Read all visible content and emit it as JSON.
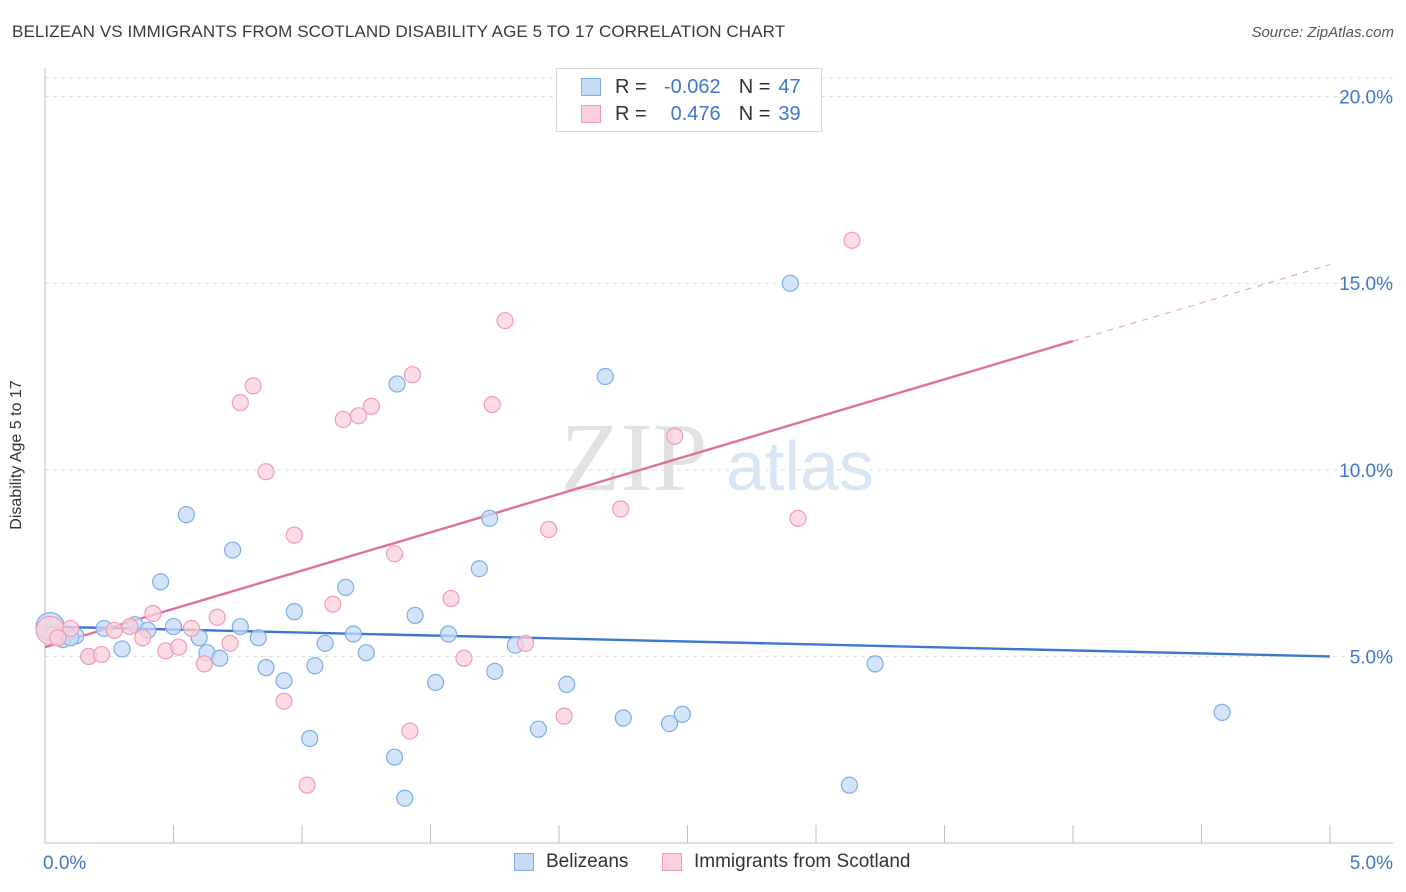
{
  "title": "BELIZEAN VS IMMIGRANTS FROM SCOTLAND DISABILITY AGE 5 TO 17 CORRELATION CHART",
  "source": "Source: ZipAtlas.com",
  "watermark": {
    "zip": "ZIP",
    "atlas": "atlas"
  },
  "legend_top": {
    "rows": [
      {
        "r_label": "R =",
        "r_value": "-0.062",
        "n_label": "N =",
        "n_value": "47",
        "color": "#7eaee8",
        "fill": "#c6dbf6"
      },
      {
        "r_label": "R =",
        "r_value": "0.476",
        "n_label": "N =",
        "n_value": "39",
        "color": "#f29bb5",
        "fill": "#fbd0dc"
      }
    ]
  },
  "legend_bottom": {
    "items": [
      {
        "label": "Belizeans",
        "color": "#7eaee8",
        "fill": "#c6dbf6"
      },
      {
        "label": "Immigrants from Scotland",
        "color": "#f29bb5",
        "fill": "#fbd0dc"
      }
    ]
  },
  "chart_data": {
    "type": "scatter",
    "title": "BELIZEAN VS IMMIGRANTS FROM SCOTLAND DISABILITY AGE 5 TO 17 CORRELATION CHART",
    "xlabel": "",
    "ylabel": "Disability Age 5 to 17",
    "xlim": [
      0,
      5
    ],
    "ylim": [
      0,
      20.5
    ],
    "x_tick_labels": {
      "left": "0.0%",
      "right": "5.0%"
    },
    "x_minor_ticks": [
      0.5,
      1.0,
      1.5,
      2.0,
      2.5,
      3.0,
      3.5,
      4.0,
      4.5,
      5.0
    ],
    "y_ticks": [
      {
        "value": 5,
        "label": "5.0%"
      },
      {
        "value": 10,
        "label": "10.0%"
      },
      {
        "value": 15,
        "label": "15.0%"
      },
      {
        "value": 20,
        "label": "20.0%"
      }
    ],
    "series": [
      {
        "name": "Belizeans",
        "color": "#3a78d0",
        "marker_fill": "#c6dbf6",
        "marker_stroke": "#7eaee8",
        "trend": {
          "x0": 0.0,
          "y0": 5.8,
          "x1": 5.0,
          "y1": 5.0
        },
        "points": [
          [
            0.02,
            5.8
          ],
          [
            0.07,
            5.45
          ],
          [
            0.12,
            5.55
          ],
          [
            0.17,
            5.0
          ],
          [
            0.23,
            5.75
          ],
          [
            0.3,
            5.2
          ],
          [
            0.35,
            5.85
          ],
          [
            0.4,
            5.7
          ],
          [
            0.45,
            7.0
          ],
          [
            0.5,
            5.8
          ],
          [
            0.55,
            8.8
          ],
          [
            0.6,
            5.5
          ],
          [
            0.63,
            5.1
          ],
          [
            0.68,
            4.95
          ],
          [
            0.73,
            7.85
          ],
          [
            0.76,
            5.8
          ],
          [
            0.83,
            5.5
          ],
          [
            0.86,
            4.7
          ],
          [
            0.93,
            4.35
          ],
          [
            0.97,
            6.2
          ],
          [
            1.03,
            2.8
          ],
          [
            1.05,
            4.75
          ],
          [
            1.09,
            5.35
          ],
          [
            1.17,
            6.85
          ],
          [
            1.2,
            5.6
          ],
          [
            1.25,
            5.1
          ],
          [
            1.36,
            2.3
          ],
          [
            1.37,
            12.3
          ],
          [
            1.4,
            1.2
          ],
          [
            1.44,
            6.1
          ],
          [
            1.52,
            4.3
          ],
          [
            1.57,
            5.6
          ],
          [
            1.69,
            7.35
          ],
          [
            1.73,
            8.7
          ],
          [
            1.75,
            4.6
          ],
          [
            1.83,
            5.3
          ],
          [
            1.92,
            3.05
          ],
          [
            2.03,
            4.25
          ],
          [
            2.18,
            12.5
          ],
          [
            2.25,
            3.35
          ],
          [
            2.43,
            3.2
          ],
          [
            2.48,
            3.45
          ],
          [
            2.9,
            15.0
          ],
          [
            3.13,
            1.55
          ],
          [
            3.23,
            4.8
          ],
          [
            4.58,
            3.5
          ],
          [
            0.1,
            5.5
          ]
        ]
      },
      {
        "name": "Immigrants from Scotland",
        "color": "#e0709a",
        "marker_fill": "#fbd0dc",
        "marker_stroke": "#f29bb5",
        "trend": {
          "x0": 0.0,
          "y0": 5.25,
          "x1": 4.0,
          "y1": 13.45,
          "dash_x1": 5.0,
          "dash_y1": 15.5
        },
        "points": [
          [
            0.02,
            5.7
          ],
          [
            0.05,
            5.5
          ],
          [
            0.1,
            5.75
          ],
          [
            0.17,
            5.0
          ],
          [
            0.22,
            5.05
          ],
          [
            0.27,
            5.7
          ],
          [
            0.33,
            5.8
          ],
          [
            0.38,
            5.5
          ],
          [
            0.42,
            6.15
          ],
          [
            0.47,
            5.15
          ],
          [
            0.52,
            5.25
          ],
          [
            0.57,
            5.75
          ],
          [
            0.62,
            4.8
          ],
          [
            0.67,
            6.05
          ],
          [
            0.72,
            5.35
          ],
          [
            0.76,
            11.8
          ],
          [
            0.81,
            12.25
          ],
          [
            0.86,
            9.95
          ],
          [
            0.93,
            3.8
          ],
          [
            0.97,
            8.25
          ],
          [
            1.02,
            1.55
          ],
          [
            1.12,
            6.4
          ],
          [
            1.16,
            11.35
          ],
          [
            1.22,
            11.45
          ],
          [
            1.27,
            11.7
          ],
          [
            1.36,
            7.75
          ],
          [
            1.42,
            3.0
          ],
          [
            1.43,
            12.55
          ],
          [
            1.58,
            6.55
          ],
          [
            1.63,
            4.95
          ],
          [
            1.74,
            11.75
          ],
          [
            1.79,
            14.0
          ],
          [
            1.87,
            5.35
          ],
          [
            1.96,
            8.4
          ],
          [
            2.02,
            3.4
          ],
          [
            2.24,
            8.95
          ],
          [
            2.45,
            10.9
          ],
          [
            2.93,
            8.7
          ],
          [
            3.14,
            16.15
          ]
        ]
      }
    ]
  }
}
